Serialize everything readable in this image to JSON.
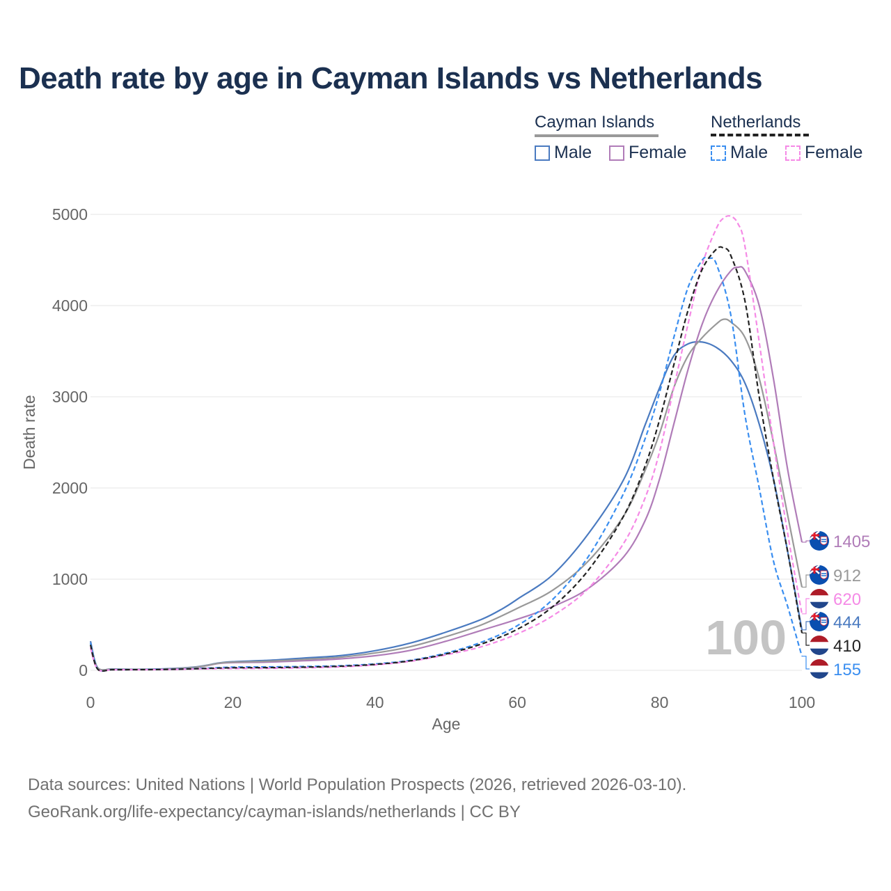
{
  "title": "Death rate by age in Cayman Islands vs Netherlands",
  "legend": {
    "groups": [
      {
        "name": "Cayman Islands",
        "line_color": "#999999",
        "dash": false,
        "items": [
          {
            "label": "Male",
            "color": "#4a7ac0"
          },
          {
            "label": "Female",
            "color": "#b07cb8"
          }
        ]
      },
      {
        "name": "Netherlands",
        "line_color": "#222222",
        "dash": true,
        "items": [
          {
            "label": "Male",
            "color": "#3a8ef0"
          },
          {
            "label": "Female",
            "color": "#f58ae6"
          }
        ]
      }
    ]
  },
  "chart_data": {
    "type": "line",
    "title": "Death rate by age in Cayman Islands vs Netherlands",
    "xlabel": "Age",
    "ylabel": "Death rate",
    "xlim": [
      0,
      100
    ],
    "ylim": [
      0,
      5000
    ],
    "x_ticks": [
      0,
      20,
      40,
      60,
      80,
      100
    ],
    "y_ticks": [
      0,
      1000,
      2000,
      3000,
      4000,
      5000
    ],
    "grid": true,
    "watermark": "100",
    "series": [
      {
        "name": "Cayman Islands Male",
        "color": "#4a7ac0",
        "dash": false,
        "points": [
          [
            0,
            320
          ],
          [
            1,
            30
          ],
          [
            3,
            15
          ],
          [
            5,
            12
          ],
          [
            10,
            15
          ],
          [
            15,
            40
          ],
          [
            18,
            80
          ],
          [
            20,
            95
          ],
          [
            25,
            110
          ],
          [
            30,
            135
          ],
          [
            35,
            160
          ],
          [
            40,
            215
          ],
          [
            45,
            300
          ],
          [
            50,
            420
          ],
          [
            55,
            560
          ],
          [
            58,
            680
          ],
          [
            60,
            780
          ],
          [
            65,
            1050
          ],
          [
            70,
            1500
          ],
          [
            75,
            2100
          ],
          [
            78,
            2700
          ],
          [
            80,
            3100
          ],
          [
            82,
            3450
          ],
          [
            84,
            3580
          ],
          [
            86,
            3600
          ],
          [
            88,
            3540
          ],
          [
            90,
            3400
          ],
          [
            92,
            3150
          ],
          [
            94,
            2700
          ],
          [
            96,
            2100
          ],
          [
            98,
            1300
          ],
          [
            100,
            444
          ]
        ],
        "end_label": "444"
      },
      {
        "name": "Cayman Islands Female",
        "color": "#b07cb8",
        "dash": false,
        "points": [
          [
            0,
            250
          ],
          [
            1,
            25
          ],
          [
            3,
            12
          ],
          [
            5,
            10
          ],
          [
            10,
            12
          ],
          [
            15,
            35
          ],
          [
            18,
            75
          ],
          [
            20,
            85
          ],
          [
            25,
            90
          ],
          [
            30,
            105
          ],
          [
            35,
            125
          ],
          [
            40,
            160
          ],
          [
            45,
            220
          ],
          [
            50,
            320
          ],
          [
            55,
            440
          ],
          [
            60,
            560
          ],
          [
            65,
            700
          ],
          [
            70,
            900
          ],
          [
            75,
            1250
          ],
          [
            78,
            1650
          ],
          [
            80,
            2100
          ],
          [
            82,
            2700
          ],
          [
            84,
            3300
          ],
          [
            86,
            3800
          ],
          [
            88,
            4150
          ],
          [
            90,
            4380
          ],
          [
            91,
            4420
          ],
          [
            92,
            4380
          ],
          [
            94,
            4000
          ],
          [
            96,
            3200
          ],
          [
            98,
            2200
          ],
          [
            100,
            1405
          ]
        ],
        "end_label": "1405"
      },
      {
        "name": "Cayman Islands Total",
        "color": "#999999",
        "dash": false,
        "points": [
          [
            0,
            280
          ],
          [
            1,
            28
          ],
          [
            3,
            13
          ],
          [
            5,
            11
          ],
          [
            10,
            13
          ],
          [
            15,
            37
          ],
          [
            18,
            78
          ],
          [
            20,
            90
          ],
          [
            25,
            100
          ],
          [
            30,
            120
          ],
          [
            35,
            143
          ],
          [
            40,
            190
          ],
          [
            45,
            260
          ],
          [
            50,
            370
          ],
          [
            55,
            500
          ],
          [
            60,
            680
          ],
          [
            65,
            880
          ],
          [
            70,
            1200
          ],
          [
            75,
            1700
          ],
          [
            78,
            2200
          ],
          [
            80,
            2600
          ],
          [
            82,
            3100
          ],
          [
            84,
            3450
          ],
          [
            86,
            3650
          ],
          [
            88,
            3800
          ],
          [
            89,
            3850
          ],
          [
            90,
            3820
          ],
          [
            92,
            3650
          ],
          [
            94,
            3200
          ],
          [
            96,
            2500
          ],
          [
            98,
            1700
          ],
          [
            100,
            912
          ]
        ],
        "end_label": "912"
      },
      {
        "name": "Netherlands Male",
        "color": "#3a8ef0",
        "dash": true,
        "points": [
          [
            0,
            300
          ],
          [
            1,
            15
          ],
          [
            3,
            8
          ],
          [
            5,
            8
          ],
          [
            10,
            10
          ],
          [
            15,
            20
          ],
          [
            20,
            35
          ],
          [
            25,
            38
          ],
          [
            30,
            42
          ],
          [
            35,
            50
          ],
          [
            40,
            70
          ],
          [
            45,
            110
          ],
          [
            50,
            190
          ],
          [
            55,
            310
          ],
          [
            60,
            490
          ],
          [
            65,
            780
          ],
          [
            70,
            1250
          ],
          [
            75,
            1950
          ],
          [
            78,
            2550
          ],
          [
            80,
            3050
          ],
          [
            82,
            3650
          ],
          [
            84,
            4200
          ],
          [
            86,
            4500
          ],
          [
            87,
            4520
          ],
          [
            88,
            4450
          ],
          [
            90,
            3900
          ],
          [
            92,
            2800
          ],
          [
            94,
            2000
          ],
          [
            96,
            1200
          ],
          [
            98,
            700
          ],
          [
            100,
            155
          ]
        ],
        "end_label": "155"
      },
      {
        "name": "Netherlands Female",
        "color": "#f58ae6",
        "dash": true,
        "points": [
          [
            0,
            250
          ],
          [
            1,
            12
          ],
          [
            3,
            7
          ],
          [
            5,
            7
          ],
          [
            10,
            8
          ],
          [
            15,
            15
          ],
          [
            20,
            20
          ],
          [
            25,
            22
          ],
          [
            30,
            28
          ],
          [
            35,
            38
          ],
          [
            40,
            60
          ],
          [
            45,
            100
          ],
          [
            50,
            170
          ],
          [
            55,
            260
          ],
          [
            60,
            400
          ],
          [
            65,
            600
          ],
          [
            70,
            900
          ],
          [
            75,
            1400
          ],
          [
            78,
            1900
          ],
          [
            80,
            2400
          ],
          [
            82,
            3100
          ],
          [
            84,
            3800
          ],
          [
            86,
            4450
          ],
          [
            88,
            4850
          ],
          [
            89,
            4960
          ],
          [
            90,
            4980
          ],
          [
            91,
            4900
          ],
          [
            92,
            4650
          ],
          [
            94,
            3600
          ],
          [
            96,
            2500
          ],
          [
            98,
            1500
          ],
          [
            100,
            620
          ]
        ],
        "end_label": "620"
      },
      {
        "name": "Netherlands Total",
        "color": "#222222",
        "dash": true,
        "points": [
          [
            0,
            280
          ],
          [
            1,
            14
          ],
          [
            3,
            7
          ],
          [
            5,
            7
          ],
          [
            10,
            9
          ],
          [
            15,
            18
          ],
          [
            20,
            28
          ],
          [
            25,
            30
          ],
          [
            30,
            35
          ],
          [
            35,
            45
          ],
          [
            40,
            65
          ],
          [
            45,
            105
          ],
          [
            50,
            180
          ],
          [
            55,
            290
          ],
          [
            60,
            450
          ],
          [
            65,
            700
          ],
          [
            70,
            1100
          ],
          [
            75,
            1700
          ],
          [
            78,
            2250
          ],
          [
            80,
            2750
          ],
          [
            82,
            3350
          ],
          [
            84,
            3950
          ],
          [
            86,
            4400
          ],
          [
            88,
            4620
          ],
          [
            89,
            4630
          ],
          [
            90,
            4550
          ],
          [
            92,
            4050
          ],
          [
            94,
            3000
          ],
          [
            96,
            2100
          ],
          [
            98,
            1300
          ],
          [
            100,
            410
          ]
        ],
        "end_label": "410"
      }
    ],
    "end_markers": [
      {
        "label": "1405",
        "color": "#b07cb8",
        "flag": "cayman"
      },
      {
        "label": "912",
        "color": "#999999",
        "flag": "cayman"
      },
      {
        "label": "620",
        "color": "#f58ae6",
        "flag": "netherlands"
      },
      {
        "label": "444",
        "color": "#4a7ac0",
        "flag": "cayman"
      },
      {
        "label": "410",
        "color": "#222222",
        "flag": "netherlands"
      },
      {
        "label": "155",
        "color": "#3a8ef0",
        "flag": "netherlands"
      }
    ]
  },
  "footer": {
    "line1": "Data sources: United Nations | World Population Prospects (2026, retrieved 2026-03-10).",
    "line2": "GeoRank.org/life-expectancy/cayman-islands/netherlands | CC BY"
  }
}
